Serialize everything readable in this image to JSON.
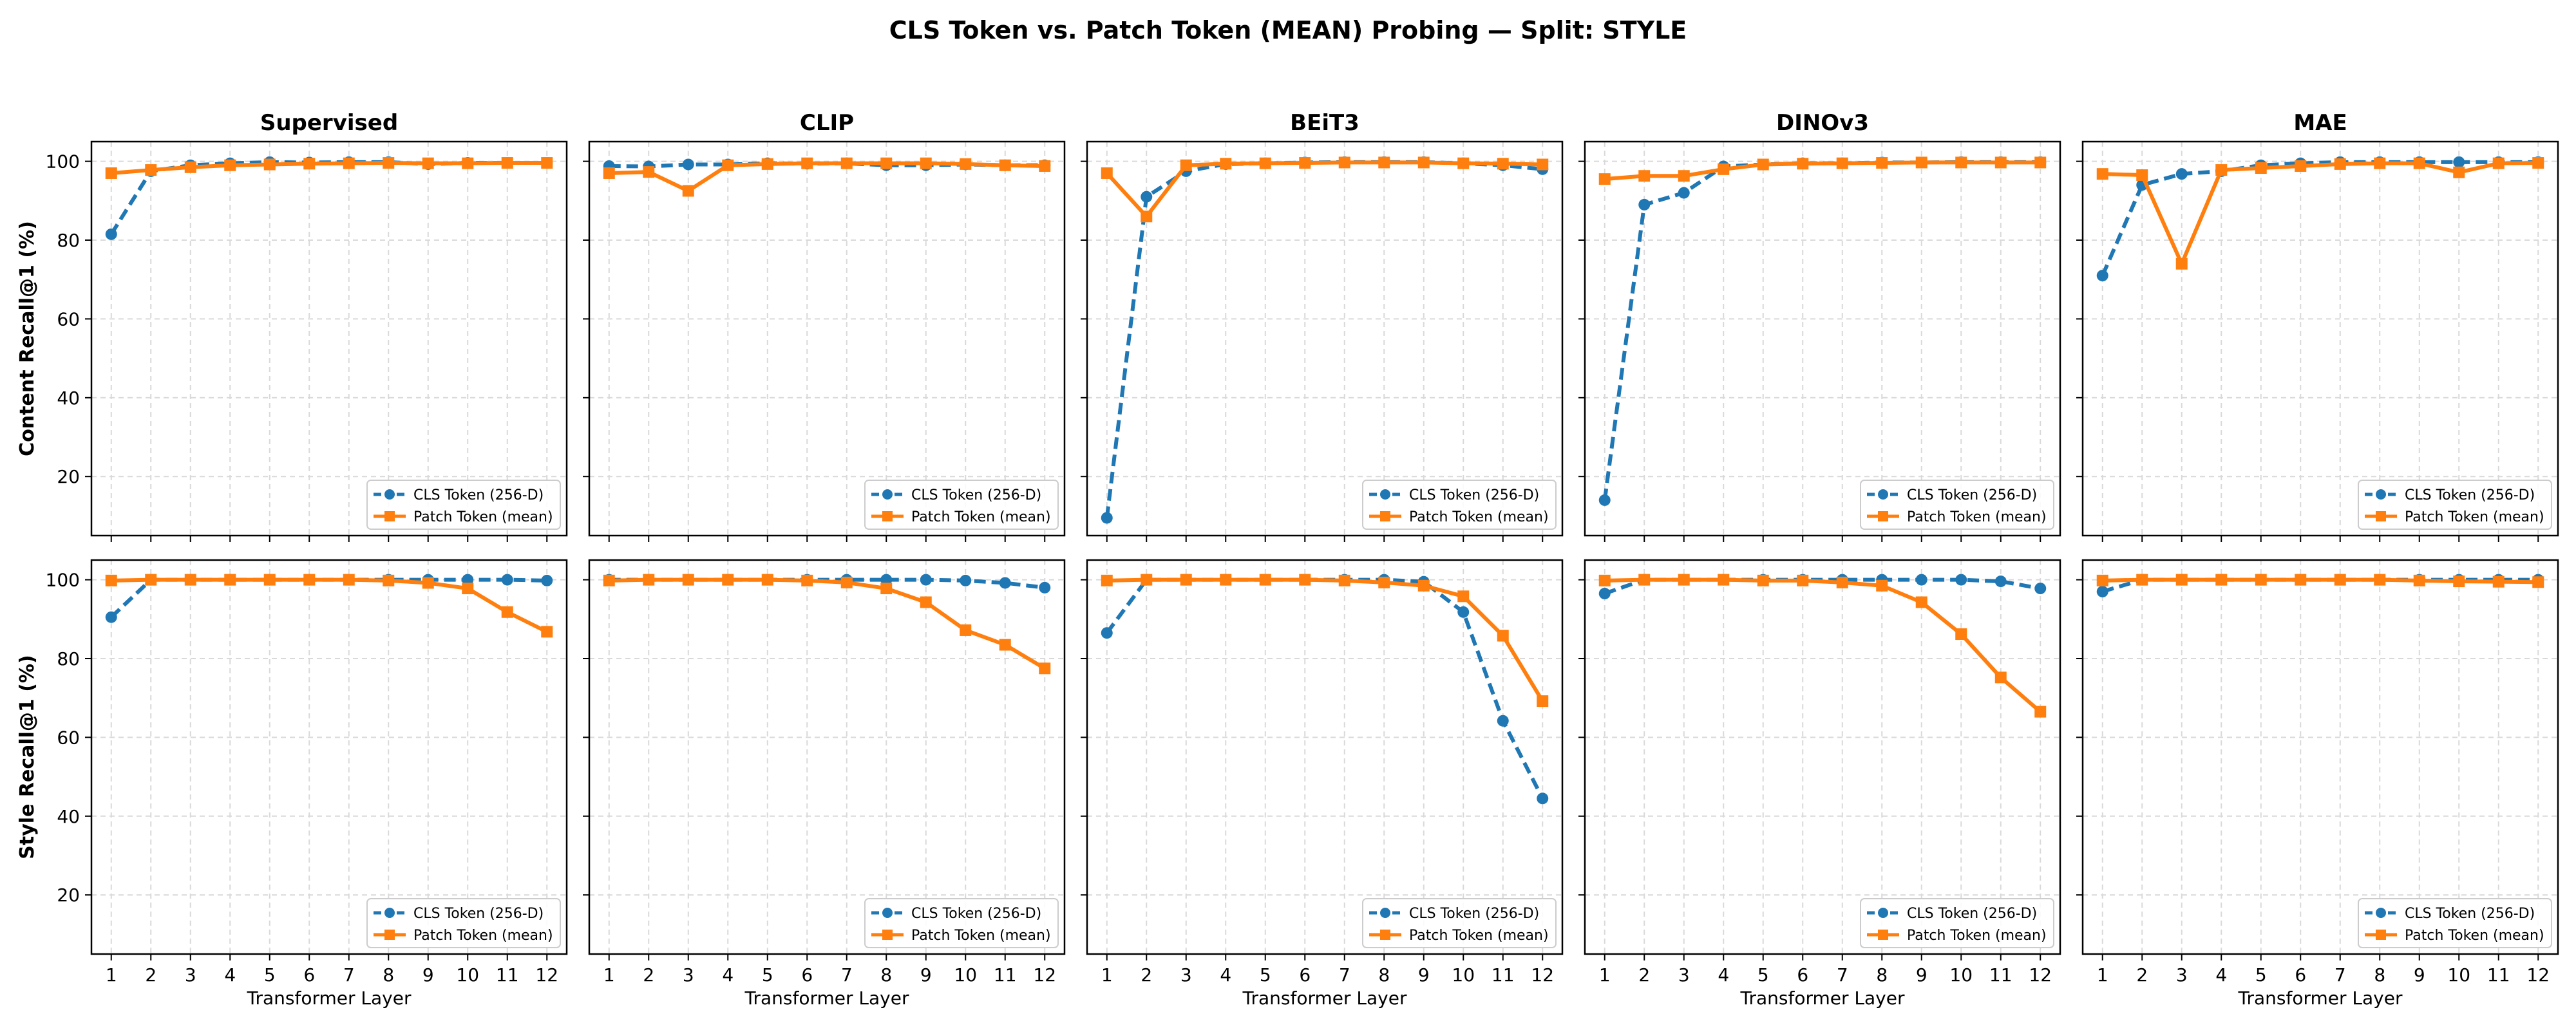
{
  "figure_title": "CLS Token vs. Patch Token (MEAN) Probing — Split: STYLE",
  "row_labels": [
    "Content Recall@1 (%)",
    "Style Recall@1 (%)"
  ],
  "panel_titles": [
    "Supervised",
    "CLIP",
    "BEiT3",
    "DINOv3",
    "MAE"
  ],
  "xlabel": "Transformer Layer",
  "legend": [
    "CLS Token (256-D)",
    "Patch Token (mean)"
  ],
  "colors": {
    "cls": "#1f77b4",
    "patch": "#ff7f0e",
    "grid": "#d9d9d9"
  },
  "chart_data": [
    {
      "type": "line",
      "row": "Content Recall@1 (%)",
      "title": "Supervised",
      "x": [
        1,
        2,
        3,
        4,
        5,
        6,
        7,
        8,
        9,
        10,
        11,
        12
      ],
      "ylim": [
        5,
        105
      ],
      "series": [
        {
          "name": "CLS Token (256-D)",
          "values": [
            81.5,
            97.5,
            99,
            99.5,
            99.8,
            99.7,
            99.8,
            99.8,
            99.3,
            99.6,
            99.6,
            99.6
          ]
        },
        {
          "name": "Patch Token (mean)",
          "values": [
            97,
            97.8,
            98.5,
            99,
            99.2,
            99.4,
            99.5,
            99.6,
            99.5,
            99.5,
            99.6,
            99.6
          ]
        }
      ]
    },
    {
      "type": "line",
      "row": "Content Recall@1 (%)",
      "title": "CLIP",
      "x": [
        1,
        2,
        3,
        4,
        5,
        6,
        7,
        8,
        9,
        10,
        11,
        12
      ],
      "ylim": [
        5,
        105
      ],
      "series": [
        {
          "name": "CLS Token (256-D)",
          "values": [
            98.8,
            98.7,
            99.2,
            99.2,
            99.5,
            99.4,
            99.5,
            99,
            99,
            99.2,
            99,
            99
          ]
        },
        {
          "name": "Patch Token (mean)",
          "values": [
            97,
            97.3,
            92.5,
            99,
            99.3,
            99.5,
            99.5,
            99.5,
            99.5,
            99.3,
            99,
            98.8
          ]
        }
      ]
    },
    {
      "type": "line",
      "row": "Content Recall@1 (%)",
      "title": "BEiT3",
      "x": [
        1,
        2,
        3,
        4,
        5,
        6,
        7,
        8,
        9,
        10,
        11,
        12
      ],
      "ylim": [
        5,
        105
      ],
      "series": [
        {
          "name": "CLS Token (256-D)",
          "values": [
            9.5,
            91,
            97.5,
            99.3,
            99.5,
            99.7,
            99.8,
            99.8,
            99.8,
            99.5,
            99,
            98
          ]
        },
        {
          "name": "Patch Token (mean)",
          "values": [
            97,
            86,
            99,
            99.4,
            99.5,
            99.6,
            99.7,
            99.7,
            99.7,
            99.5,
            99.4,
            99.2
          ]
        }
      ]
    },
    {
      "type": "line",
      "row": "Content Recall@1 (%)",
      "title": "DINOv3",
      "x": [
        1,
        2,
        3,
        4,
        5,
        6,
        7,
        8,
        9,
        10,
        11,
        12
      ],
      "ylim": [
        5,
        105
      ],
      "series": [
        {
          "name": "CLS Token (256-D)",
          "values": [
            14,
            89,
            92,
            98.7,
            99.2,
            99.5,
            99.5,
            99.7,
            99.7,
            99.8,
            99.8,
            99.8
          ]
        },
        {
          "name": "Patch Token (mean)",
          "values": [
            95.5,
            96.3,
            96.3,
            98,
            99.2,
            99.4,
            99.5,
            99.6,
            99.7,
            99.7,
            99.7,
            99.7
          ]
        }
      ]
    },
    {
      "type": "line",
      "row": "Content Recall@1 (%)",
      "title": "MAE",
      "x": [
        1,
        2,
        3,
        4,
        5,
        6,
        7,
        8,
        9,
        10,
        11,
        12
      ],
      "ylim": [
        5,
        105
      ],
      "series": [
        {
          "name": "CLS Token (256-D)",
          "values": [
            71,
            94,
            96.8,
            97.5,
            99,
            99.5,
            99.8,
            99.8,
            99.8,
            99.8,
            99.8,
            99.8
          ]
        },
        {
          "name": "Patch Token (mean)",
          "values": [
            96.8,
            96.5,
            74,
            97.8,
            98.3,
            98.8,
            99.3,
            99.5,
            99.5,
            97.2,
            99.5,
            99.6
          ]
        }
      ]
    },
    {
      "type": "line",
      "row": "Style Recall@1 (%)",
      "title": "Supervised",
      "x": [
        1,
        2,
        3,
        4,
        5,
        6,
        7,
        8,
        9,
        10,
        11,
        12
      ],
      "ylim": [
        5,
        105
      ],
      "series": [
        {
          "name": "CLS Token (256-D)",
          "values": [
            90.5,
            100,
            100,
            100,
            100,
            100,
            100,
            100,
            100,
            100,
            100,
            99.8
          ]
        },
        {
          "name": "Patch Token (mean)",
          "values": [
            99.8,
            100,
            100,
            100,
            100,
            100,
            100,
            99.8,
            99.2,
            97.8,
            91.8,
            86.8
          ]
        }
      ]
    },
    {
      "type": "line",
      "row": "Style Recall@1 (%)",
      "title": "CLIP",
      "x": [
        1,
        2,
        3,
        4,
        5,
        6,
        7,
        8,
        9,
        10,
        11,
        12
      ],
      "ylim": [
        5,
        105
      ],
      "series": [
        {
          "name": "CLS Token (256-D)",
          "values": [
            100,
            100,
            100,
            100,
            100,
            100,
            100,
            100,
            100,
            99.8,
            99.2,
            98
          ]
        },
        {
          "name": "Patch Token (mean)",
          "values": [
            99.8,
            100,
            100,
            100,
            100,
            99.8,
            99.3,
            97.8,
            94.3,
            87.2,
            83.5,
            77.5
          ]
        }
      ]
    },
    {
      "type": "line",
      "row": "Style Recall@1 (%)",
      "title": "BEiT3",
      "x": [
        1,
        2,
        3,
        4,
        5,
        6,
        7,
        8,
        9,
        10,
        11,
        12
      ],
      "ylim": [
        5,
        105
      ],
      "series": [
        {
          "name": "CLS Token (256-D)",
          "values": [
            86.5,
            100,
            100,
            100,
            100,
            100,
            100,
            100,
            99.5,
            91.8,
            64.2,
            44.5
          ]
        },
        {
          "name": "Patch Token (mean)",
          "values": [
            99.8,
            100,
            100,
            100,
            100,
            100,
            99.8,
            99.3,
            98.5,
            95.8,
            85.8,
            69.2
          ]
        }
      ]
    },
    {
      "type": "line",
      "row": "Style Recall@1 (%)",
      "title": "DINOv3",
      "x": [
        1,
        2,
        3,
        4,
        5,
        6,
        7,
        8,
        9,
        10,
        11,
        12
      ],
      "ylim": [
        5,
        105
      ],
      "series": [
        {
          "name": "CLS Token (256-D)",
          "values": [
            96.5,
            100,
            100,
            100,
            100,
            100,
            100,
            100,
            100,
            100,
            99.6,
            97.8
          ]
        },
        {
          "name": "Patch Token (mean)",
          "values": [
            99.8,
            100,
            100,
            100,
            99.8,
            99.8,
            99.3,
            98.5,
            94.3,
            86.2,
            75.2,
            66.5
          ]
        }
      ]
    },
    {
      "type": "line",
      "row": "Style Recall@1 (%)",
      "title": "MAE",
      "x": [
        1,
        2,
        3,
        4,
        5,
        6,
        7,
        8,
        9,
        10,
        11,
        12
      ],
      "ylim": [
        5,
        105
      ],
      "series": [
        {
          "name": "CLS Token (256-D)",
          "values": [
            97,
            100,
            100,
            100,
            100,
            100,
            100,
            100,
            100,
            100,
            100,
            100
          ]
        },
        {
          "name": "Patch Token (mean)",
          "values": [
            99.8,
            100,
            100,
            100,
            100,
            100,
            100,
            100,
            99.8,
            99.6,
            99.5,
            99.4
          ]
        }
      ]
    }
  ]
}
